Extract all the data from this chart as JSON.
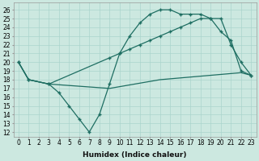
{
  "xlabel": "Humidex (Indice chaleur)",
  "bg_color": "#cce8e0",
  "line_color": "#1e6e62",
  "xlim": [
    -0.5,
    23.5
  ],
  "ylim": [
    11.5,
    26.8
  ],
  "xticks": [
    0,
    1,
    2,
    3,
    4,
    5,
    6,
    7,
    8,
    9,
    10,
    11,
    12,
    13,
    14,
    15,
    16,
    17,
    18,
    19,
    20,
    21,
    22,
    23
  ],
  "yticks": [
    12,
    13,
    14,
    15,
    16,
    17,
    18,
    19,
    20,
    21,
    22,
    23,
    24,
    25,
    26
  ],
  "series1_x": [
    0,
    1,
    3,
    4,
    5,
    6,
    7,
    8,
    9,
    10,
    11,
    12,
    13,
    14,
    15,
    16,
    17,
    18,
    19,
    20,
    21,
    22,
    23
  ],
  "series1_y": [
    20,
    18,
    17.5,
    16.5,
    15,
    13.5,
    12,
    14,
    17.5,
    21,
    23,
    24.5,
    25.5,
    26,
    26,
    25.5,
    25.5,
    25.5,
    25,
    23.5,
    22.5,
    19,
    18.5
  ],
  "series2_x": [
    0,
    1,
    3,
    9,
    10,
    11,
    12,
    13,
    14,
    15,
    16,
    17,
    18,
    19,
    20,
    21,
    22,
    23
  ],
  "series2_y": [
    20,
    18,
    17.5,
    20.5,
    21,
    21.5,
    22,
    22.5,
    23,
    23.5,
    24,
    24.5,
    25,
    25,
    25,
    22,
    20,
    18.5
  ],
  "series3_x": [
    0,
    1,
    3,
    9,
    10,
    11,
    12,
    13,
    14,
    15,
    16,
    17,
    18,
    19,
    20,
    21,
    22,
    23
  ],
  "series3_y": [
    20,
    18,
    17.5,
    17,
    17.2,
    17.4,
    17.6,
    17.8,
    18.0,
    18.1,
    18.2,
    18.3,
    18.4,
    18.5,
    18.6,
    18.7,
    18.8,
    18.5
  ],
  "grid_color": "#aad4cc",
  "tick_fontsize": 5.5,
  "xlabel_fontsize": 6.5
}
